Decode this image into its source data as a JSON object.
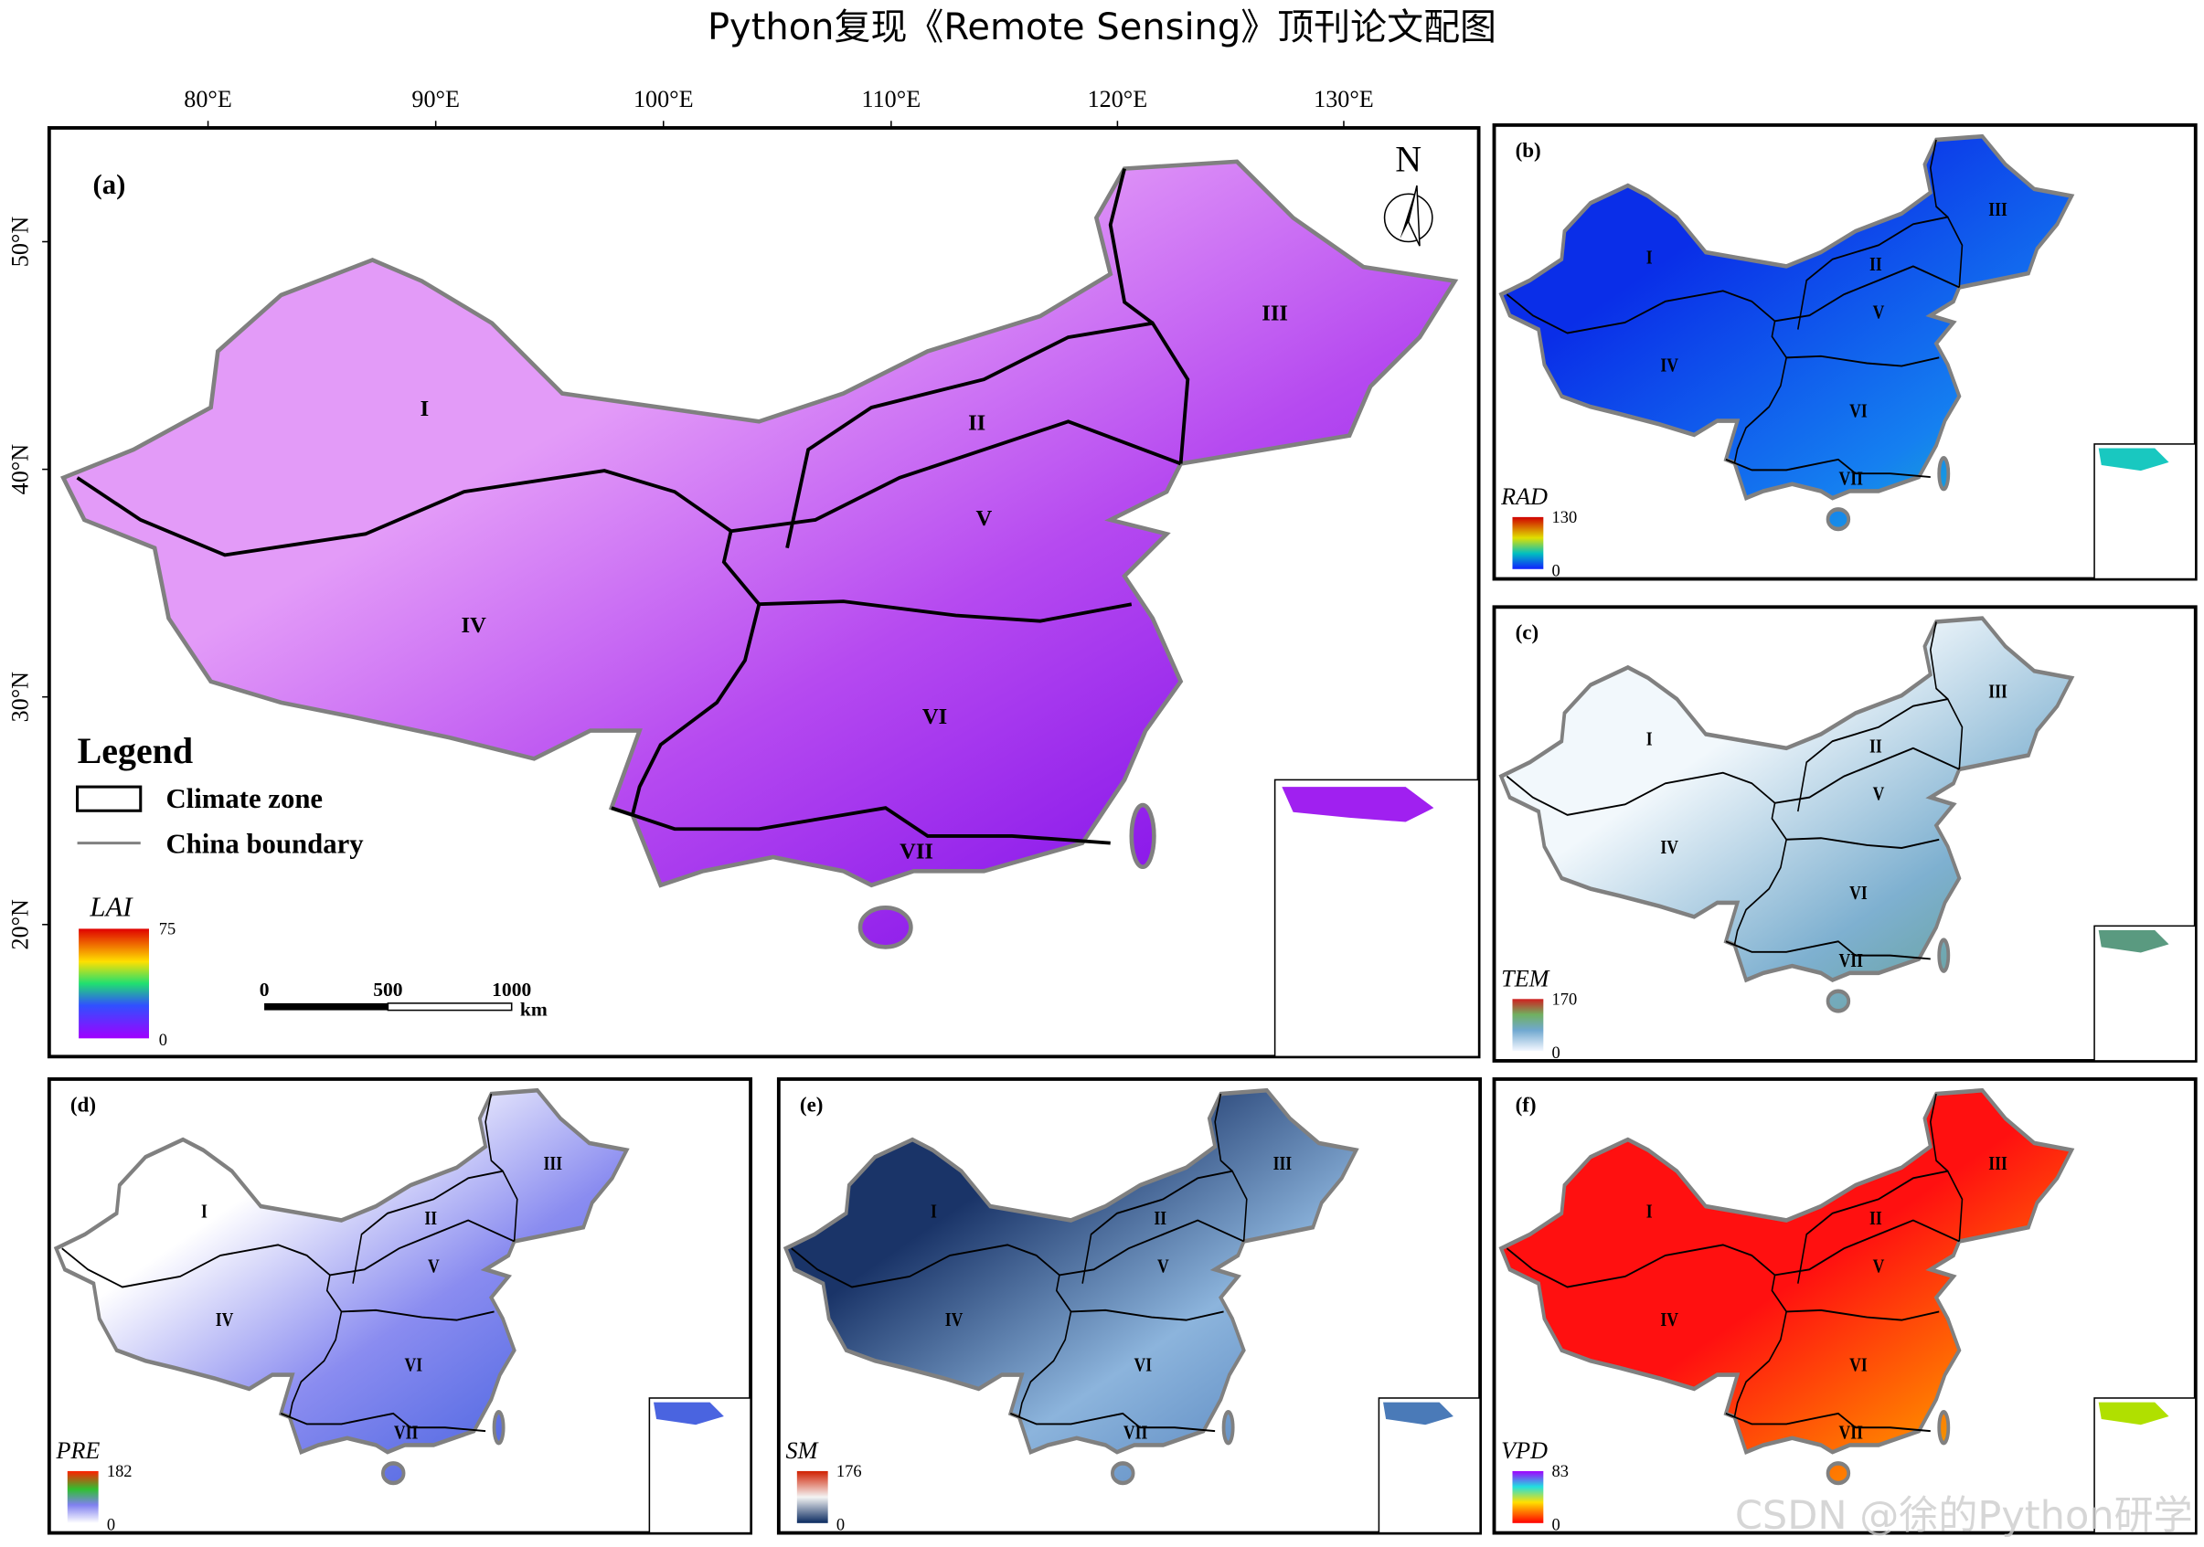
{
  "title": "Python复现《Remote Sensing》顶刊论文配图",
  "zones": [
    "I",
    "II",
    "III",
    "IV",
    "V",
    "VI",
    "VII"
  ],
  "panel_a": {
    "label": "(a)",
    "lon_ticks": [
      "80°E",
      "90°E",
      "100°E",
      "110°E",
      "120°E",
      "130°E"
    ],
    "lat_ticks": [
      "50°N",
      "40°N",
      "30°N",
      "20°N"
    ],
    "north": "N",
    "legend": {
      "title": "Legend",
      "items": [
        "Climate zone",
        "China boundary"
      ]
    },
    "colorbar": {
      "name": "LAI",
      "max": 75,
      "min": 0
    },
    "scalebar": {
      "ticks": [
        0,
        500,
        1000
      ],
      "unit": "km"
    }
  },
  "panels": [
    {
      "label": "(b)",
      "name": "RAD",
      "max": 130,
      "min": 0
    },
    {
      "label": "(c)",
      "name": "TEM",
      "max": 170,
      "min": 0
    },
    {
      "label": "(d)",
      "name": "PRE",
      "max": 182,
      "min": 0
    },
    {
      "label": "(e)",
      "name": "SM",
      "max": 176,
      "min": 0
    },
    {
      "label": "(f)",
      "name": "VPD",
      "max": 83,
      "min": 0
    }
  ],
  "watermark": "CSDN @徐的Python研学"
}
